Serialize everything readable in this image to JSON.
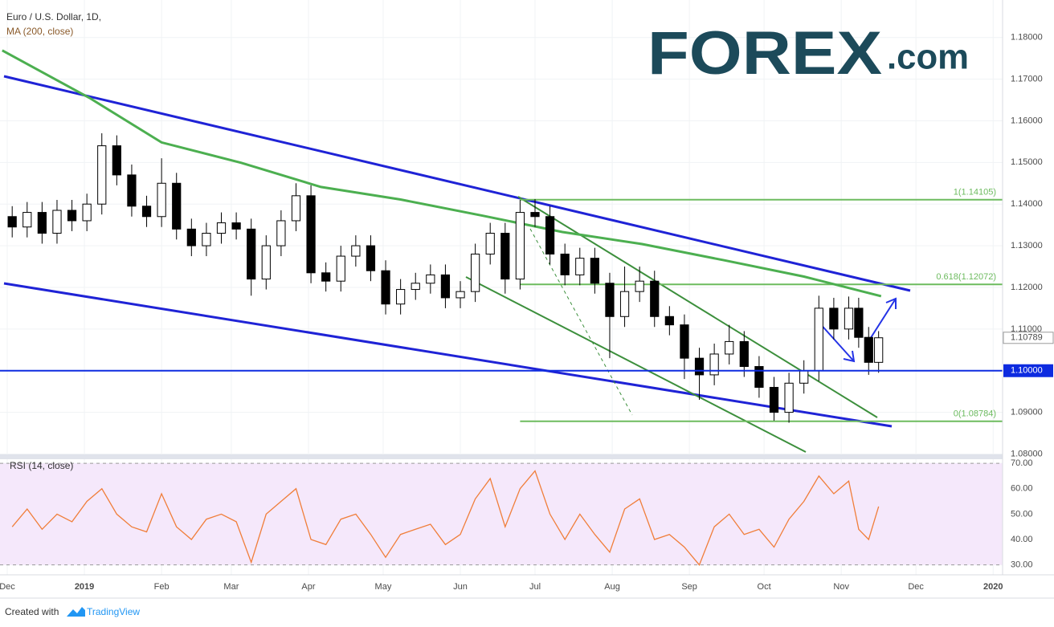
{
  "chart_data": [
    {
      "type": "candlestick",
      "title": "Euro / U.S. Dollar, 1D,",
      "x": [
        2,
        8,
        14,
        20,
        26,
        32,
        38,
        44,
        50,
        56,
        62,
        68,
        74,
        80,
        86,
        92,
        98,
        104,
        110,
        116,
        122,
        128,
        134,
        140,
        146,
        152,
        158,
        164,
        170,
        176,
        182,
        188,
        194,
        200,
        206,
        212,
        218,
        224,
        230,
        236,
        242,
        248,
        254,
        260,
        266,
        272,
        278,
        284,
        290,
        296,
        302,
        308,
        314,
        320,
        326,
        332,
        338,
        342,
        346,
        350
      ],
      "open": [
        1.137,
        1.1345,
        1.138,
        1.133,
        1.1385,
        1.136,
        1.14,
        1.154,
        1.147,
        1.1395,
        1.137,
        1.145,
        1.134,
        1.13,
        1.133,
        1.1355,
        1.134,
        1.122,
        1.13,
        1.136,
        1.142,
        1.1235,
        1.1215,
        1.1275,
        1.13,
        1.124,
        1.116,
        1.1195,
        1.121,
        1.123,
        1.1175,
        1.119,
        1.128,
        1.133,
        1.122,
        1.138,
        1.137,
        1.128,
        1.123,
        1.127,
        1.121,
        1.113,
        1.119,
        1.1215,
        1.113,
        1.111,
        1.103,
        1.099,
        1.104,
        1.107,
        1.101,
        1.096,
        1.09,
        1.097,
        1.1,
        1.115,
        1.11,
        1.115,
        1.108,
        1.102
      ],
      "high": [
        1.1395,
        1.1405,
        1.1405,
        1.141,
        1.141,
        1.1425,
        1.157,
        1.1565,
        1.1495,
        1.142,
        1.151,
        1.1475,
        1.1365,
        1.1355,
        1.138,
        1.138,
        1.1365,
        1.1325,
        1.1385,
        1.145,
        1.1445,
        1.126,
        1.13,
        1.1325,
        1.1325,
        1.1265,
        1.122,
        1.1235,
        1.1255,
        1.1255,
        1.1215,
        1.1305,
        1.1355,
        1.1355,
        1.141,
        1.1412,
        1.1395,
        1.1305,
        1.1295,
        1.1295,
        1.1235,
        1.125,
        1.125,
        1.124,
        1.1155,
        1.1135,
        1.1055,
        1.1065,
        1.111,
        1.1095,
        1.1035,
        1.0985,
        1.0995,
        1.1025,
        1.118,
        1.1175,
        1.1178,
        1.1175,
        1.1105,
        1.1095
      ],
      "low": [
        1.132,
        1.132,
        1.1305,
        1.1305,
        1.1335,
        1.1335,
        1.1375,
        1.1445,
        1.137,
        1.1345,
        1.1345,
        1.1315,
        1.1275,
        1.1275,
        1.1305,
        1.1315,
        1.118,
        1.1195,
        1.1275,
        1.1335,
        1.121,
        1.119,
        1.119,
        1.125,
        1.1215,
        1.1135,
        1.1135,
        1.117,
        1.1185,
        1.115,
        1.115,
        1.1165,
        1.1255,
        1.1185,
        1.1195,
        1.1345,
        1.1255,
        1.1205,
        1.1205,
        1.1185,
        1.103,
        1.1105,
        1.1165,
        1.1105,
        1.1085,
        1.098,
        1.093,
        1.0965,
        1.1015,
        1.0985,
        1.0935,
        1.088,
        1.0875,
        1.0945,
        1.0975,
        1.1075,
        1.1075,
        1.1055,
        1.099,
        1.0995
      ],
      "close": [
        1.1345,
        1.138,
        1.133,
        1.1385,
        1.136,
        1.14,
        1.154,
        1.147,
        1.1395,
        1.137,
        1.145,
        1.134,
        1.13,
        1.133,
        1.1355,
        1.134,
        1.122,
        1.13,
        1.136,
        1.142,
        1.1235,
        1.1215,
        1.1275,
        1.13,
        1.124,
        1.116,
        1.1195,
        1.121,
        1.123,
        1.1175,
        1.119,
        1.128,
        1.133,
        1.122,
        1.138,
        1.137,
        1.128,
        1.123,
        1.127,
        1.121,
        1.113,
        1.119,
        1.1215,
        1.113,
        1.111,
        1.103,
        1.099,
        1.104,
        1.107,
        1.101,
        1.096,
        1.09,
        1.097,
        1.1,
        1.115,
        1.11,
        1.115,
        1.108,
        1.102,
        1.1079
      ],
      "up_color": "#ffffff",
      "down_color": "#000000",
      "series": [
        {
          "name": "MA (200, close)",
          "color": "#4caf50",
          "x": [
            -2,
            33,
            62,
            94,
            126,
            158,
            191,
            223,
            255,
            288,
            320,
            351
          ],
          "values": [
            1.1769,
            1.1655,
            1.1548,
            1.1499,
            1.1441,
            1.1411,
            1.1372,
            1.1333,
            1.1304,
            1.1265,
            1.1226,
            1.1179
          ]
        }
      ],
      "xlim": [
        -2.9,
        399.8
      ],
      "xticks": [
        {
          "value": 0,
          "label": "Dec"
        },
        {
          "value": 31,
          "label": "2019"
        },
        {
          "value": 62,
          "label": "Feb"
        },
        {
          "value": 90,
          "label": "Mar"
        },
        {
          "value": 121,
          "label": "Apr"
        },
        {
          "value": 151,
          "label": "May"
        },
        {
          "value": 182,
          "label": "Jun"
        },
        {
          "value": 212,
          "label": "Jul"
        },
        {
          "value": 243,
          "label": "Aug"
        },
        {
          "value": 274,
          "label": "Sep"
        },
        {
          "value": 304,
          "label": "Oct"
        },
        {
          "value": 335,
          "label": "Nov"
        },
        {
          "value": 365,
          "label": "Dec"
        },
        {
          "value": 396,
          "label": "2020"
        }
      ],
      "ylim": [
        1.0799,
        1.189
      ],
      "yticks": [
        {
          "value": 1.08,
          "label": "1.08000"
        },
        {
          "value": 1.09,
          "label": "1.09000"
        },
        {
          "value": 1.11,
          "label": "1.11000"
        },
        {
          "value": 1.12,
          "label": "1.12000"
        },
        {
          "value": 1.13,
          "label": "1.13000"
        },
        {
          "value": 1.14,
          "label": "1.14000"
        },
        {
          "value": 1.15,
          "label": "1.15000"
        },
        {
          "value": 1.16,
          "label": "1.16000"
        },
        {
          "value": 1.17,
          "label": "1.17000"
        },
        {
          "value": 1.18,
          "label": "1.18000"
        }
      ],
      "grid": true,
      "fib_levels": [
        {
          "value": 1.14105,
          "label": "1(1.14105)"
        },
        {
          "value": 1.12072,
          "label": "0.618(1.12072)"
        },
        {
          "value": 1.08784,
          "label": "0(1.08784)"
        }
      ],
      "fib_start_x": 206,
      "fib_color": "#6dbb5f",
      "horizontal_line": {
        "value": 1.1,
        "label": "1.10000",
        "color": "#0d2be0"
      },
      "last_price": {
        "value": 1.10789,
        "label": "1.10789"
      }
    },
    {
      "type": "line",
      "title": "RSI (14, close)",
      "x": [
        2,
        8,
        14,
        20,
        26,
        32,
        38,
        44,
        50,
        56,
        62,
        68,
        74,
        80,
        86,
        92,
        98,
        104,
        110,
        116,
        122,
        128,
        134,
        140,
        146,
        152,
        158,
        164,
        170,
        176,
        182,
        188,
        194,
        200,
        206,
        212,
        218,
        224,
        230,
        236,
        242,
        248,
        254,
        260,
        266,
        272,
        278,
        284,
        290,
        296,
        302,
        308,
        314,
        320,
        326,
        332,
        338,
        342,
        346,
        350
      ],
      "values": [
        45,
        52,
        44,
        50,
        47,
        55,
        60,
        50,
        45,
        43,
        58,
        45,
        40,
        48,
        50,
        47,
        31,
        50,
        55,
        60,
        40,
        38,
        48,
        50,
        42,
        33,
        42,
        44,
        46,
        38,
        42,
        56,
        64,
        45,
        60,
        67,
        50,
        40,
        50,
        42,
        35,
        52,
        56,
        40,
        42,
        37,
        30,
        45,
        50,
        42,
        44,
        37,
        48,
        55,
        65,
        58,
        63,
        44,
        40,
        53
      ],
      "color": "#f07e3a",
      "xlim": [
        -2.9,
        399.8
      ],
      "ylim": [
        26.1,
        71.6
      ],
      "yticks": [
        {
          "value": 30,
          "label": "30.00"
        },
        {
          "value": 40,
          "label": "40.00"
        },
        {
          "value": 50,
          "label": "50.00"
        },
        {
          "value": 60,
          "label": "60.00"
        },
        {
          "value": 70,
          "label": "70.00"
        }
      ],
      "band": [
        30,
        70
      ],
      "band_color": "#f5e8fb"
    }
  ],
  "logo": {
    "text": "FOREX",
    "suffix": ".com"
  },
  "footer": {
    "created_with": "Created with",
    "brand": "TradingView"
  }
}
